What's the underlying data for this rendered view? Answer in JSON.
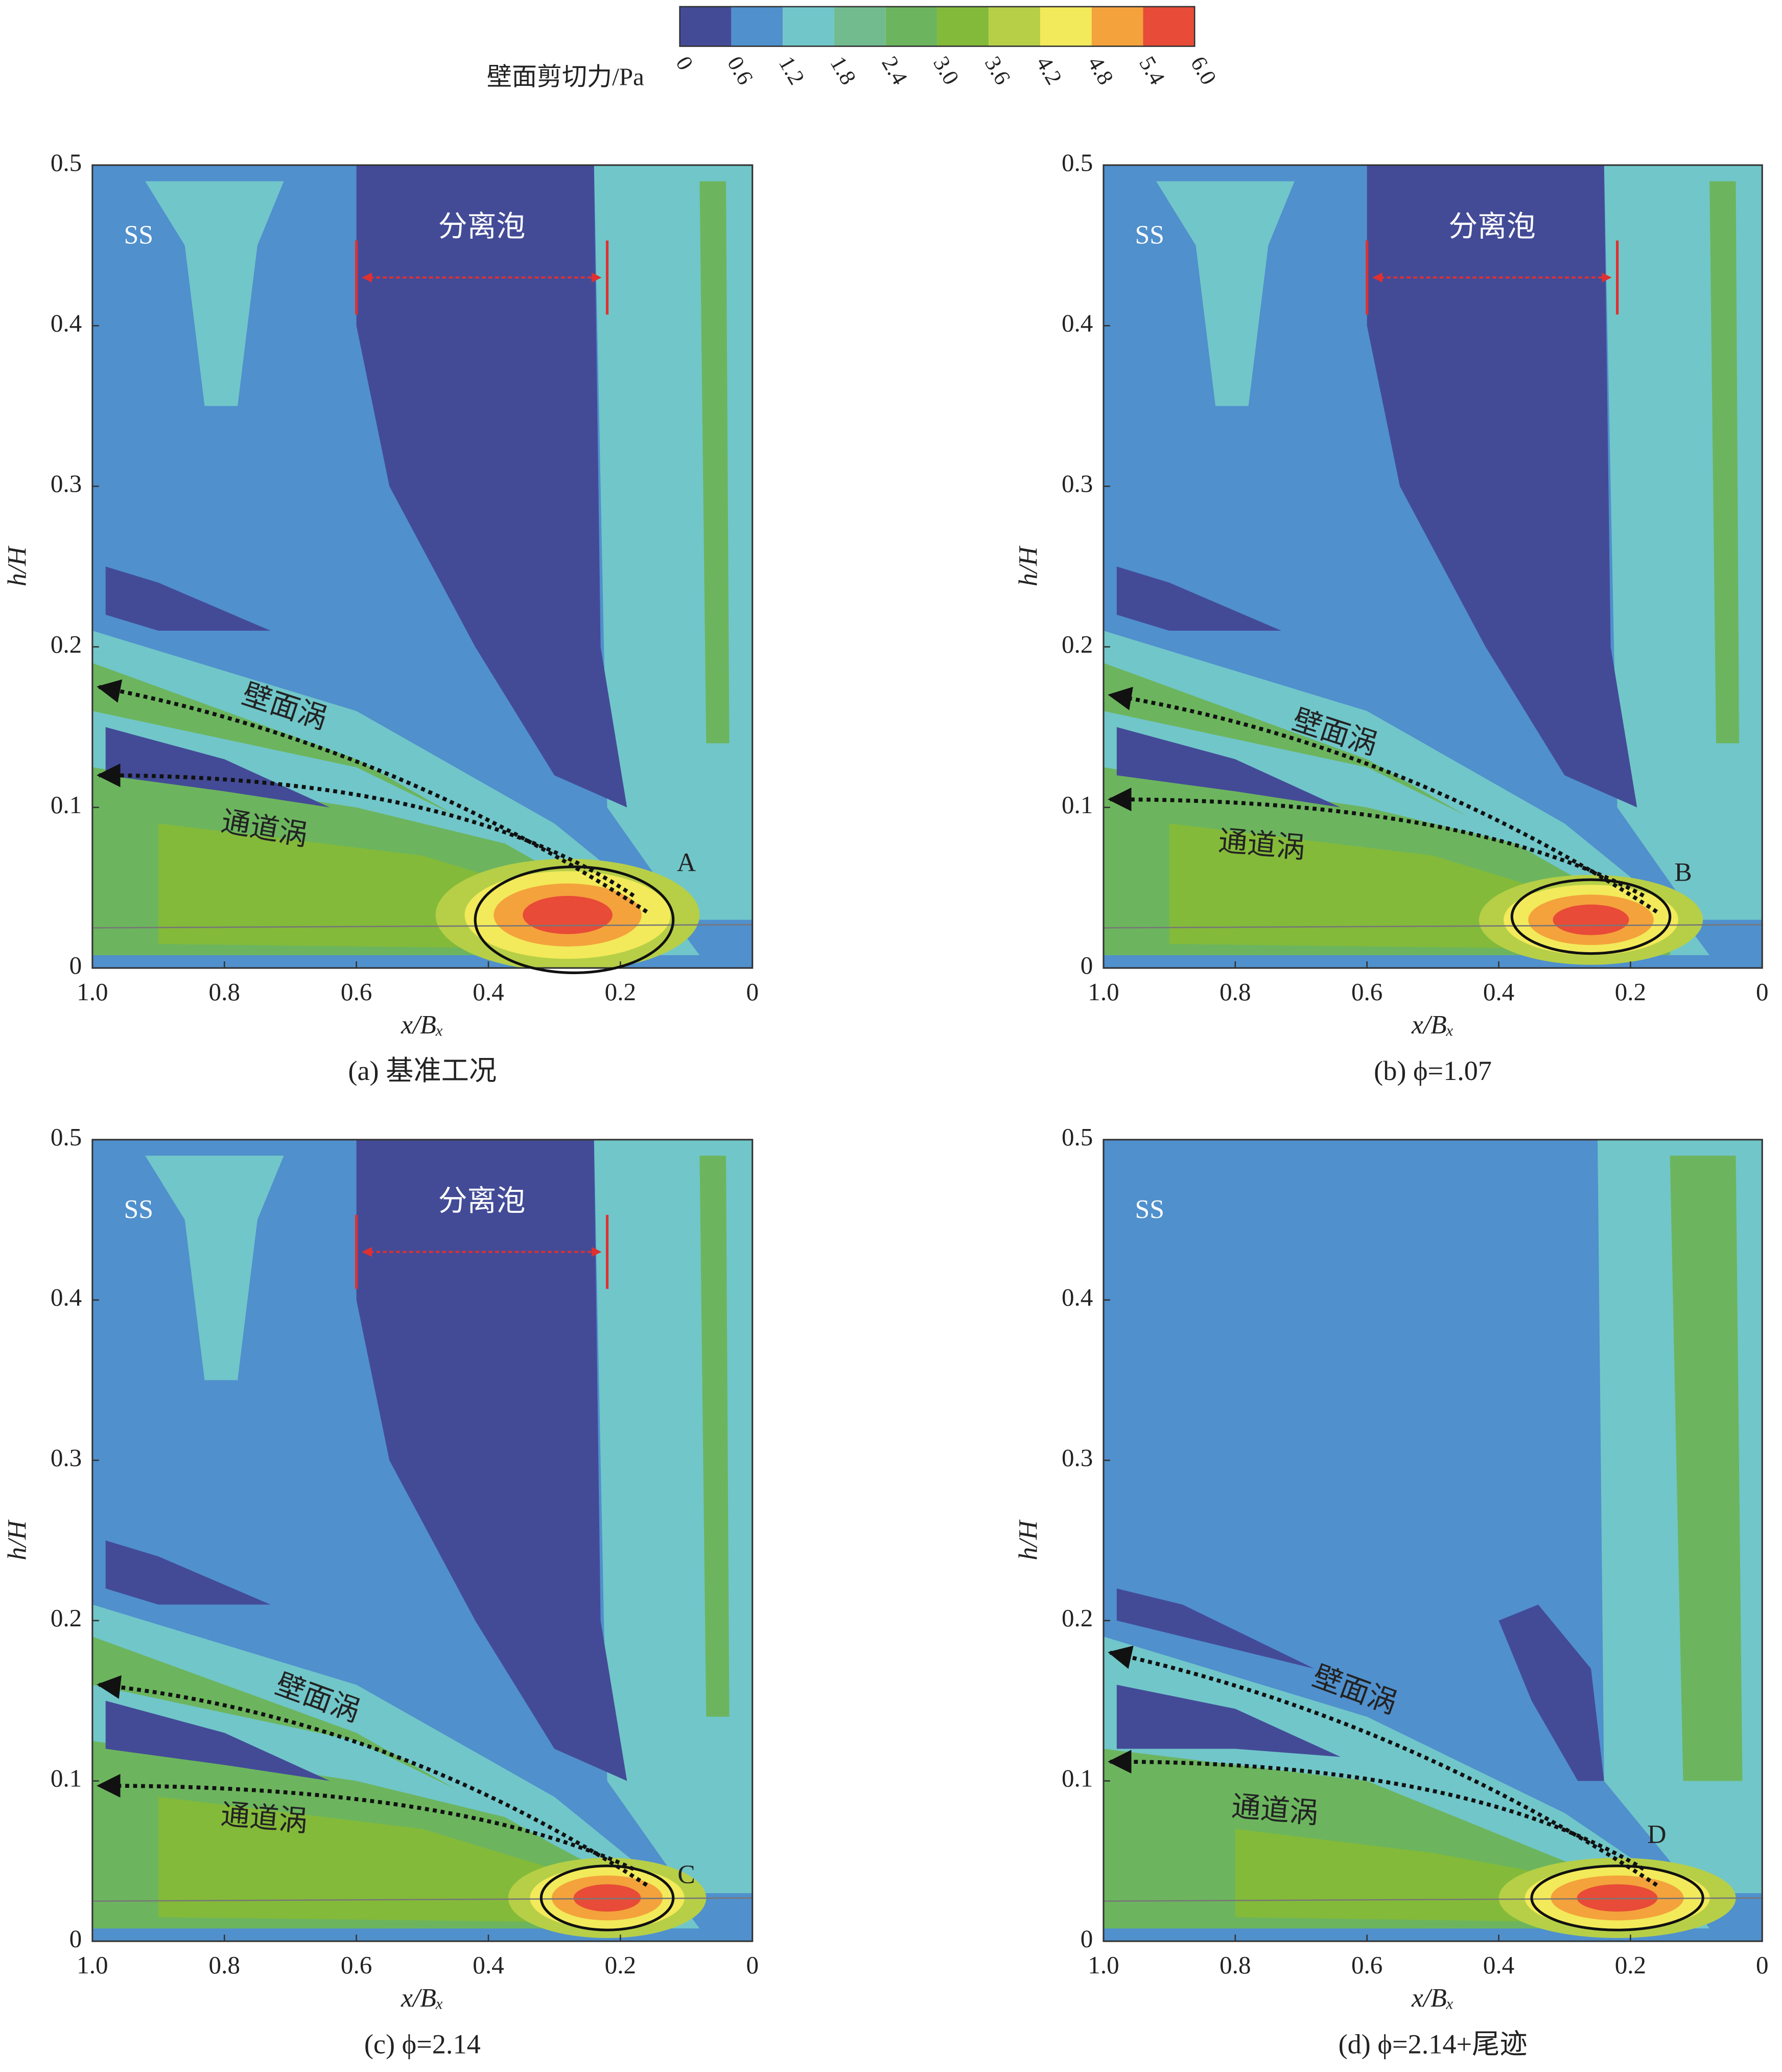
{
  "colorbar": {
    "label": "壁面剪切力/Pa",
    "ticks": [
      0,
      0.6,
      1.2,
      1.8,
      2.4,
      {
        "value": 3,
        "label": "3.0"
      },
      3.6,
      4.2,
      4.8,
      5.4,
      {
        "value": 6,
        "label": "6.0"
      }
    ],
    "colors": [
      "#434b97",
      "#5090cd",
      "#71c6c9",
      "#72bb8f",
      "#6cb55e",
      "#84ba3a",
      "#b6cf47",
      "#f2ea5a",
      "#f4a23c",
      "#e84b37"
    ]
  },
  "chart_data": [
    {
      "type": "contour",
      "title": "(a) 基准工况",
      "xlabel": "x/Bₓ",
      "ylabel": "h/H",
      "xlim": [
        1,
        0
      ],
      "ylim": [
        0,
        0.5
      ],
      "xticks": [
        {
          "value": 1,
          "label": "1.0"
        },
        0.8,
        0.6,
        0.4,
        0.2,
        0
      ],
      "yticks": [
        0,
        0.1,
        0.2,
        0.3,
        0.4,
        0.5
      ],
      "labels": {
        "surface": "SS",
        "bubble": "分离泡",
        "wall_vortex": "壁面涡",
        "passage_vortex": "通道涡",
        "point": "A"
      }
    },
    {
      "type": "contour",
      "title": "(b) ϕ=1.07",
      "xlabel": "x/Bₓ",
      "ylabel": "h/H",
      "xlim": [
        1,
        0
      ],
      "ylim": [
        0,
        0.5
      ],
      "xticks": [
        {
          "value": 1,
          "label": "1.0"
        },
        0.8,
        0.6,
        0.4,
        0.2,
        0
      ],
      "yticks": [
        0,
        0.1,
        0.2,
        0.3,
        0.4,
        0.5
      ],
      "labels": {
        "surface": "SS",
        "bubble": "分离泡",
        "wall_vortex": "壁面涡",
        "passage_vortex": "通道涡",
        "point": "B"
      }
    },
    {
      "type": "contour",
      "title": "(c) ϕ=2.14",
      "xlabel": "x/Bₓ",
      "ylabel": "h/H",
      "xlim": [
        1,
        0
      ],
      "ylim": [
        0,
        0.5
      ],
      "xticks": [
        {
          "value": 1,
          "label": "1.0"
        },
        0.8,
        0.6,
        0.4,
        0.2,
        0
      ],
      "yticks": [
        0,
        0.1,
        0.2,
        0.3,
        0.4,
        0.5
      ],
      "labels": {
        "surface": "SS",
        "bubble": "分离泡",
        "wall_vortex": "壁面涡",
        "passage_vortex": "通道涡",
        "point": "C"
      }
    },
    {
      "type": "contour",
      "title": "(d) ϕ=2.14+尾迹",
      "xlabel": "x/Bₓ",
      "ylabel": "h/H",
      "xlim": [
        1,
        0
      ],
      "ylim": [
        0,
        0.5
      ],
      "xticks": [
        {
          "value": 1,
          "label": "1.0"
        },
        0.8,
        0.6,
        0.4,
        0.2,
        0
      ],
      "yticks": [
        0,
        0.1,
        0.2,
        0.3,
        0.4,
        0.5
      ],
      "labels": {
        "surface": "SS",
        "wall_vortex": "壁面涡",
        "passage_vortex": "通道涡",
        "point": "D"
      }
    }
  ]
}
